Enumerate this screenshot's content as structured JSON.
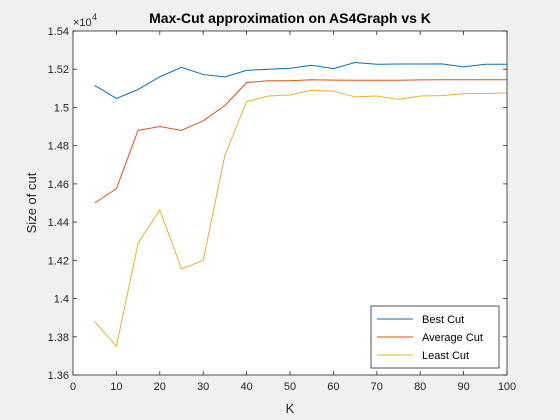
{
  "figure": {
    "background": "#f0f0f0",
    "axes_background": "#ffffff"
  },
  "chart_data": {
    "type": "line",
    "title": "Max-Cut approximation on AS4Graph vs K",
    "xlabel": "K",
    "ylabel": "Size of cut",
    "y_exponent_label": "×10",
    "y_exponent_power": "4",
    "xlim": [
      0,
      100
    ],
    "ylim": [
      1.36,
      1.54
    ],
    "x_ticks": [
      0,
      10,
      20,
      30,
      40,
      50,
      60,
      70,
      80,
      90,
      100
    ],
    "x_tick_labels": [
      "0",
      "10",
      "20",
      "30",
      "40",
      "50",
      "60",
      "70",
      "80",
      "90",
      "100"
    ],
    "y_ticks": [
      1.36,
      1.38,
      1.4,
      1.42,
      1.44,
      1.46,
      1.48,
      1.5,
      1.52,
      1.54
    ],
    "y_tick_labels": [
      "1.36",
      "1.38",
      "1.4",
      "1.42",
      "1.44",
      "1.46",
      "1.48",
      "1.5",
      "1.52",
      "1.54"
    ],
    "grid": false,
    "legend_position": "bottom-right",
    "x": [
      5,
      10,
      15,
      20,
      25,
      30,
      35,
      40,
      45,
      50,
      55,
      60,
      65,
      70,
      75,
      80,
      85,
      90,
      95,
      100
    ],
    "series": [
      {
        "name": "Best Cut",
        "color": "#0072BD",
        "values": [
          1.5115,
          1.5047,
          1.5094,
          1.516,
          1.521,
          1.5172,
          1.516,
          1.5194,
          1.52,
          1.5205,
          1.5221,
          1.5203,
          1.5235,
          1.5226,
          1.5227,
          1.5227,
          1.5228,
          1.5212,
          1.5226,
          1.5226
        ]
      },
      {
        "name": "Average Cut",
        "color": "#D95319",
        "values": [
          1.45,
          1.4575,
          1.488,
          1.49,
          1.488,
          1.493,
          1.501,
          1.513,
          1.514,
          1.514,
          1.5145,
          1.5143,
          1.5142,
          1.5142,
          1.5142,
          1.5144,
          1.5145,
          1.5145,
          1.5145,
          1.5145
        ]
      },
      {
        "name": "Least Cut",
        "color": "#EDB120",
        "values": [
          1.388,
          1.375,
          1.429,
          1.4465,
          1.4155,
          1.42,
          1.475,
          1.503,
          1.506,
          1.5065,
          1.509,
          1.5085,
          1.5055,
          1.506,
          1.5042,
          1.506,
          1.5062,
          1.5072,
          1.5073,
          1.5076
        ]
      }
    ]
  }
}
